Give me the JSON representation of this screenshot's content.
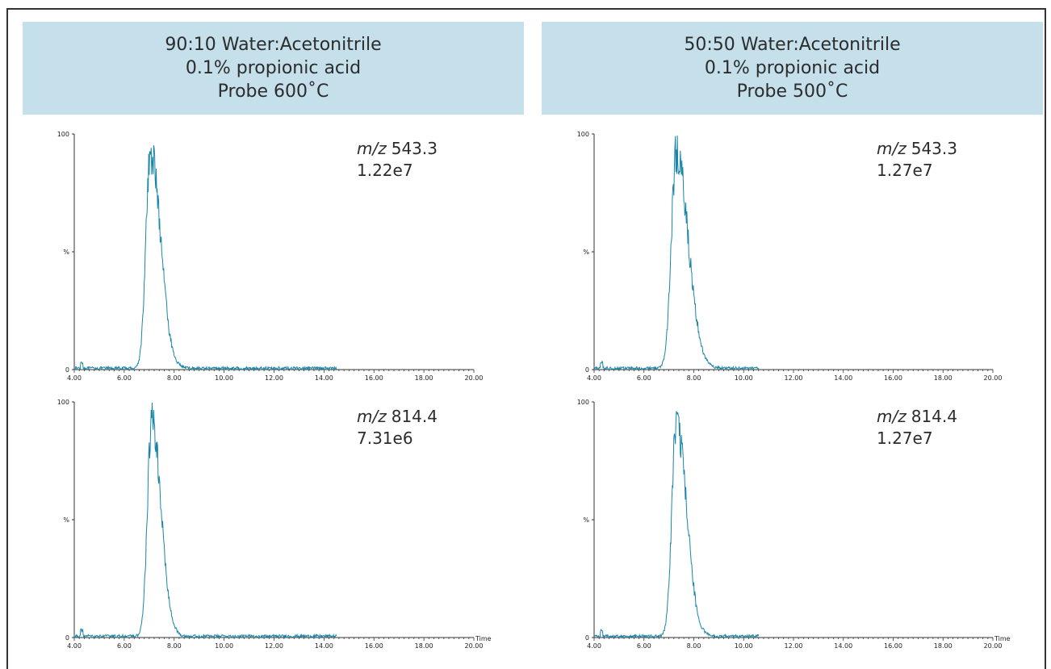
{
  "columns": [
    {
      "header": [
        "90:10 Water:Acetonitrile",
        "0.1% propionic acid",
        "Probe 600˚C"
      ]
    },
    {
      "header": [
        "50:50 Water:Acetonitrile",
        "0.1% propionic acid",
        "Probe 500˚C"
      ]
    }
  ],
  "series_color": "#1a86a6",
  "chart_data": [
    {
      "type": "line",
      "panel": "top-left",
      "mz_prefix": "m/z",
      "mz": "543.3",
      "intensity": "1.22e7",
      "peak_rt": 7.05,
      "peak_width": 0.18,
      "tail": 0.45,
      "xlim": [
        4.0,
        20.0
      ],
      "ylim": [
        0,
        100
      ],
      "xticks": [
        "4.00",
        "6.00",
        "8.00",
        "10.00",
        "12.00",
        "14.00",
        "16.00",
        "18.00",
        "20.00"
      ],
      "yticks": [
        "0",
        "%",
        "100"
      ],
      "xlabel": "",
      "signal_end": 14.5
    },
    {
      "type": "line",
      "panel": "top-right",
      "mz_prefix": "m/z",
      "mz": "543.3",
      "intensity": "1.27e7",
      "peak_rt": 7.3,
      "peak_width": 0.2,
      "tail": 0.55,
      "xlim": [
        4.0,
        20.0
      ],
      "ylim": [
        0,
        100
      ],
      "xticks": [
        "4.00",
        "6.00",
        "8.00",
        "10.00",
        "12.00",
        "14.00",
        "16.00",
        "18.00",
        "20.00"
      ],
      "yticks": [
        "0",
        "%",
        "100"
      ],
      "xlabel": "",
      "signal_end": 10.6
    },
    {
      "type": "line",
      "panel": "bottom-left",
      "mz_prefix": "m/z",
      "mz": "814.4",
      "intensity": "7.31e6",
      "peak_rt": 7.1,
      "peak_width": 0.17,
      "tail": 0.4,
      "xlim": [
        4.0,
        20.0
      ],
      "ylim": [
        0,
        100
      ],
      "xticks": [
        "4.00",
        "6.00",
        "8.00",
        "10.00",
        "12.00",
        "14.00",
        "16.00",
        "18.00",
        "20.00"
      ],
      "yticks": [
        "0",
        "%",
        "100"
      ],
      "xlabel": "Time",
      "signal_end": 14.5
    },
    {
      "type": "line",
      "panel": "bottom-right",
      "mz_prefix": "m/z",
      "mz": "814.4",
      "intensity": "1.27e7",
      "peak_rt": 7.3,
      "peak_width": 0.18,
      "tail": 0.45,
      "xlim": [
        4.0,
        20.0
      ],
      "ylim": [
        0,
        100
      ],
      "xticks": [
        "4.00",
        "6.00",
        "8.00",
        "10.00",
        "12.00",
        "14.00",
        "16.00",
        "18.00",
        "20.00"
      ],
      "yticks": [
        "0",
        "%",
        "100"
      ],
      "xlabel": "Time",
      "signal_end": 10.6
    }
  ]
}
